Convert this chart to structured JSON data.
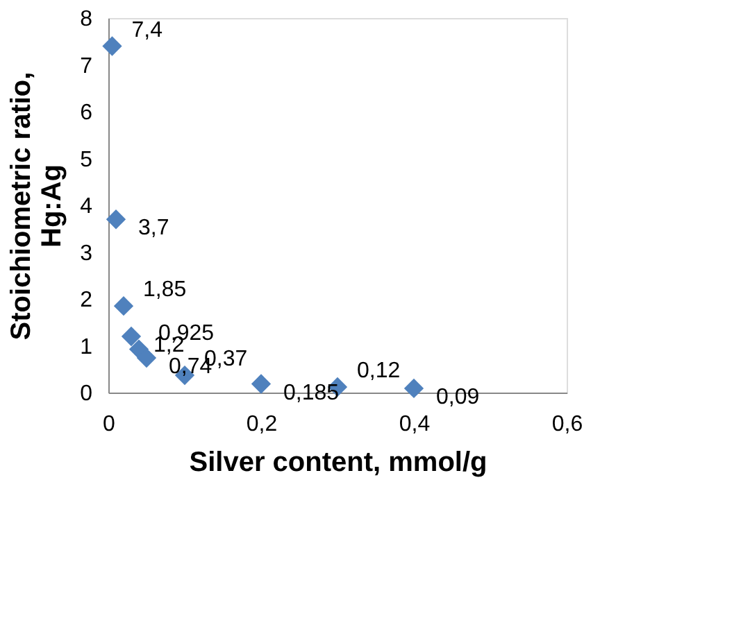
{
  "chart_data": {
    "type": "scatter",
    "xlabel": "Silver content, mmol/g",
    "ylabel": "Stoichiometric ratio, Hg:Ag",
    "x": [
      0.005,
      0.01,
      0.02,
      0.03,
      0.04,
      0.05,
      0.1,
      0.2,
      0.3,
      0.4
    ],
    "values": [
      7.4,
      3.7,
      1.85,
      1.2,
      0.925,
      0.74,
      0.37,
      0.185,
      0.12,
      0.09
    ],
    "value_labels": [
      "7,4",
      "3,7",
      "1,85",
      "1,2",
      "0,925",
      "0,74",
      "0,37",
      "0,185",
      "0,12",
      "0,09"
    ],
    "color": "#4f81bd",
    "marker": "diamond",
    "grid": false,
    "xlim": [
      0,
      0.6
    ],
    "xticks": [
      0,
      {
        "value": 0.2,
        "label": "0,2"
      },
      {
        "value": 0.4,
        "label": "0,4"
      },
      {
        "value": 0.6,
        "label": "0,6"
      }
    ],
    "ylim": [
      0,
      8
    ],
    "yticks": [
      0,
      1,
      2,
      3,
      4,
      5,
      6,
      7,
      8
    ]
  }
}
